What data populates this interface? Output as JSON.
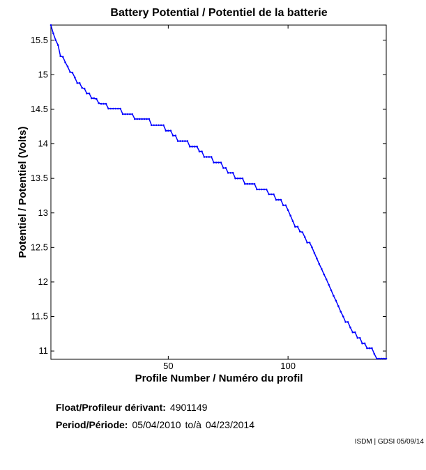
{
  "chart_data": {
    "type": "line",
    "title": "Battery Potential / Potentiel de la batterie",
    "xlabel": "Profile Number / Numéro du profil",
    "ylabel": "Potentiel / Potentiel (Volts)",
    "xlim": [
      1,
      141
    ],
    "ylim": [
      10.88,
      15.72
    ],
    "xticks": [
      50,
      100
    ],
    "yticks": [
      11,
      11.5,
      12,
      12.5,
      13,
      13.5,
      14,
      14.5,
      15,
      15.5
    ],
    "ytick_labels": [
      "11",
      "11.5",
      "12",
      "12.5",
      "13",
      "13.5",
      "14",
      "14.5",
      "15",
      "15.5"
    ],
    "grid": false,
    "series": [
      {
        "color": "#0000ff",
        "marker": "dot",
        "x": [
          1,
          2,
          3,
          4,
          5,
          6,
          7,
          8,
          9,
          10,
          11,
          12,
          13,
          14,
          15,
          16,
          17,
          18,
          19,
          20,
          21,
          22,
          23,
          24,
          25,
          26,
          27,
          28,
          29,
          30,
          31,
          32,
          33,
          34,
          35,
          36,
          37,
          38,
          39,
          40,
          41,
          42,
          43,
          44,
          45,
          46,
          47,
          48,
          49,
          50,
          51,
          52,
          53,
          54,
          55,
          56,
          57,
          58,
          59,
          60,
          61,
          62,
          63,
          64,
          65,
          66,
          67,
          68,
          69,
          70,
          71,
          72,
          73,
          74,
          75,
          76,
          77,
          78,
          79,
          80,
          81,
          82,
          83,
          84,
          85,
          86,
          87,
          88,
          89,
          90,
          91,
          92,
          93,
          94,
          95,
          96,
          97,
          98,
          99,
          100,
          101,
          102,
          103,
          104,
          105,
          106,
          107,
          108,
          109,
          110,
          111,
          112,
          113,
          114,
          115,
          116,
          117,
          118,
          119,
          120,
          121,
          122,
          123,
          124,
          125,
          126,
          127,
          128,
          129,
          130,
          131,
          132,
          133,
          134,
          135,
          136,
          137,
          138,
          139,
          140,
          141
        ],
        "y": [
          15.72,
          15.6,
          15.5,
          15.43,
          15.27,
          15.26,
          15.18,
          15.12,
          15.04,
          15.03,
          14.96,
          14.88,
          14.88,
          14.81,
          14.8,
          14.73,
          14.73,
          14.66,
          14.66,
          14.65,
          14.59,
          14.58,
          14.58,
          14.58,
          14.51,
          14.51,
          14.51,
          14.51,
          14.51,
          14.51,
          14.43,
          14.43,
          14.43,
          14.43,
          14.43,
          14.36,
          14.36,
          14.36,
          14.36,
          14.36,
          14.36,
          14.36,
          14.27,
          14.27,
          14.27,
          14.27,
          14.27,
          14.27,
          14.19,
          14.19,
          14.19,
          14.12,
          14.12,
          14.04,
          14.04,
          14.04,
          14.04,
          14.04,
          13.96,
          13.96,
          13.96,
          13.96,
          13.89,
          13.89,
          13.81,
          13.81,
          13.81,
          13.81,
          13.73,
          13.73,
          13.73,
          13.73,
          13.65,
          13.65,
          13.58,
          13.58,
          13.58,
          13.5,
          13.5,
          13.5,
          13.5,
          13.42,
          13.42,
          13.42,
          13.42,
          13.42,
          13.34,
          13.34,
          13.34,
          13.34,
          13.34,
          13.27,
          13.27,
          13.27,
          13.19,
          13.19,
          13.19,
          13.11,
          13.11,
          13.04,
          12.96,
          12.88,
          12.8,
          12.8,
          12.73,
          12.72,
          12.65,
          12.57,
          12.57,
          12.5,
          12.42,
          12.34,
          12.26,
          12.19,
          12.11,
          12.04,
          11.96,
          11.88,
          11.8,
          11.73,
          11.65,
          11.57,
          11.5,
          11.42,
          11.42,
          11.34,
          11.27,
          11.27,
          11.19,
          11.19,
          11.11,
          11.11,
          11.04,
          11.04,
          11.04,
          10.96,
          10.89,
          10.89,
          10.89,
          10.89,
          10.89
        ]
      }
    ]
  },
  "float_label": "Float/Profileur dérivant:",
  "float_id": "4901149",
  "period_label": "Period/Période:",
  "period_start": "05/04/2010",
  "period_to": "to/à",
  "period_end": "04/23/2014",
  "credit": "ISDM | GDSI 05/09/14"
}
